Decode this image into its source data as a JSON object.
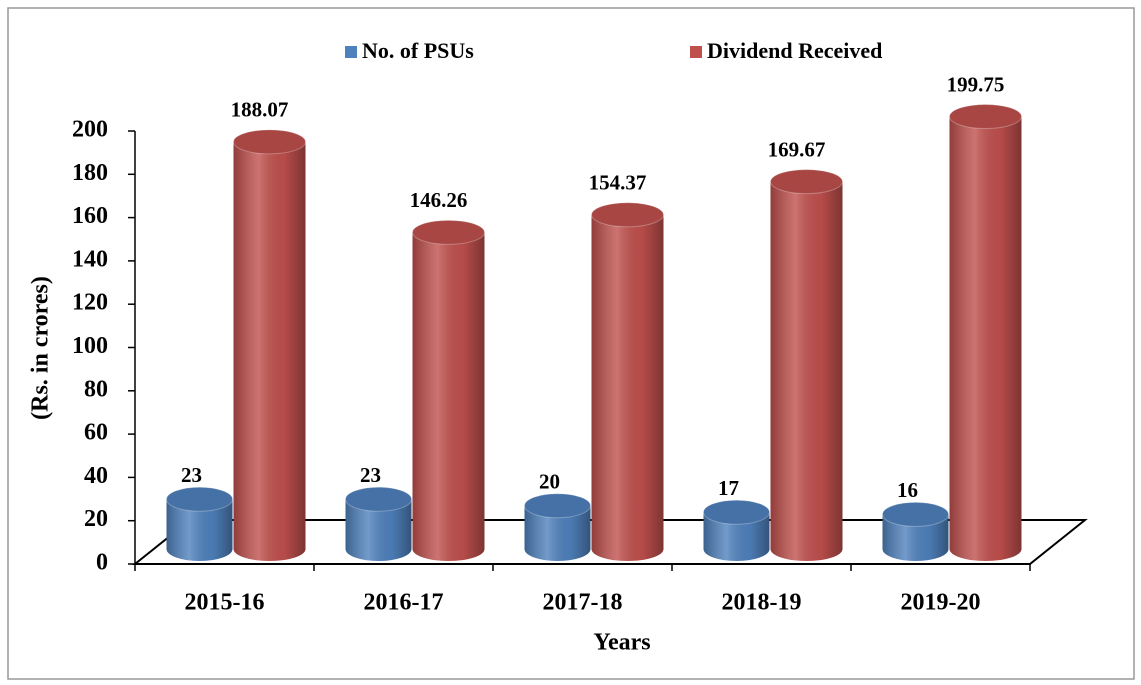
{
  "chart_data": {
    "type": "bar",
    "categories": [
      "2015-16",
      "2016-17",
      "2017-18",
      "2018-19",
      "2019-20"
    ],
    "series": [
      {
        "name": "No. of PSUs",
        "color": "#4f81bd",
        "values": [
          23,
          23,
          20,
          17,
          16
        ]
      },
      {
        "name": "Dividend Received",
        "color": "#c0504d",
        "values": [
          188.07,
          146.26,
          154.37,
          169.67,
          199.75
        ]
      }
    ],
    "ylabel": "(Rs. in crores)",
    "xlabel": "Years",
    "ylim": [
      0,
      200
    ],
    "yticks": [
      0,
      20,
      40,
      60,
      80,
      100,
      120,
      140,
      160,
      180,
      200
    ],
    "legend": "top"
  }
}
